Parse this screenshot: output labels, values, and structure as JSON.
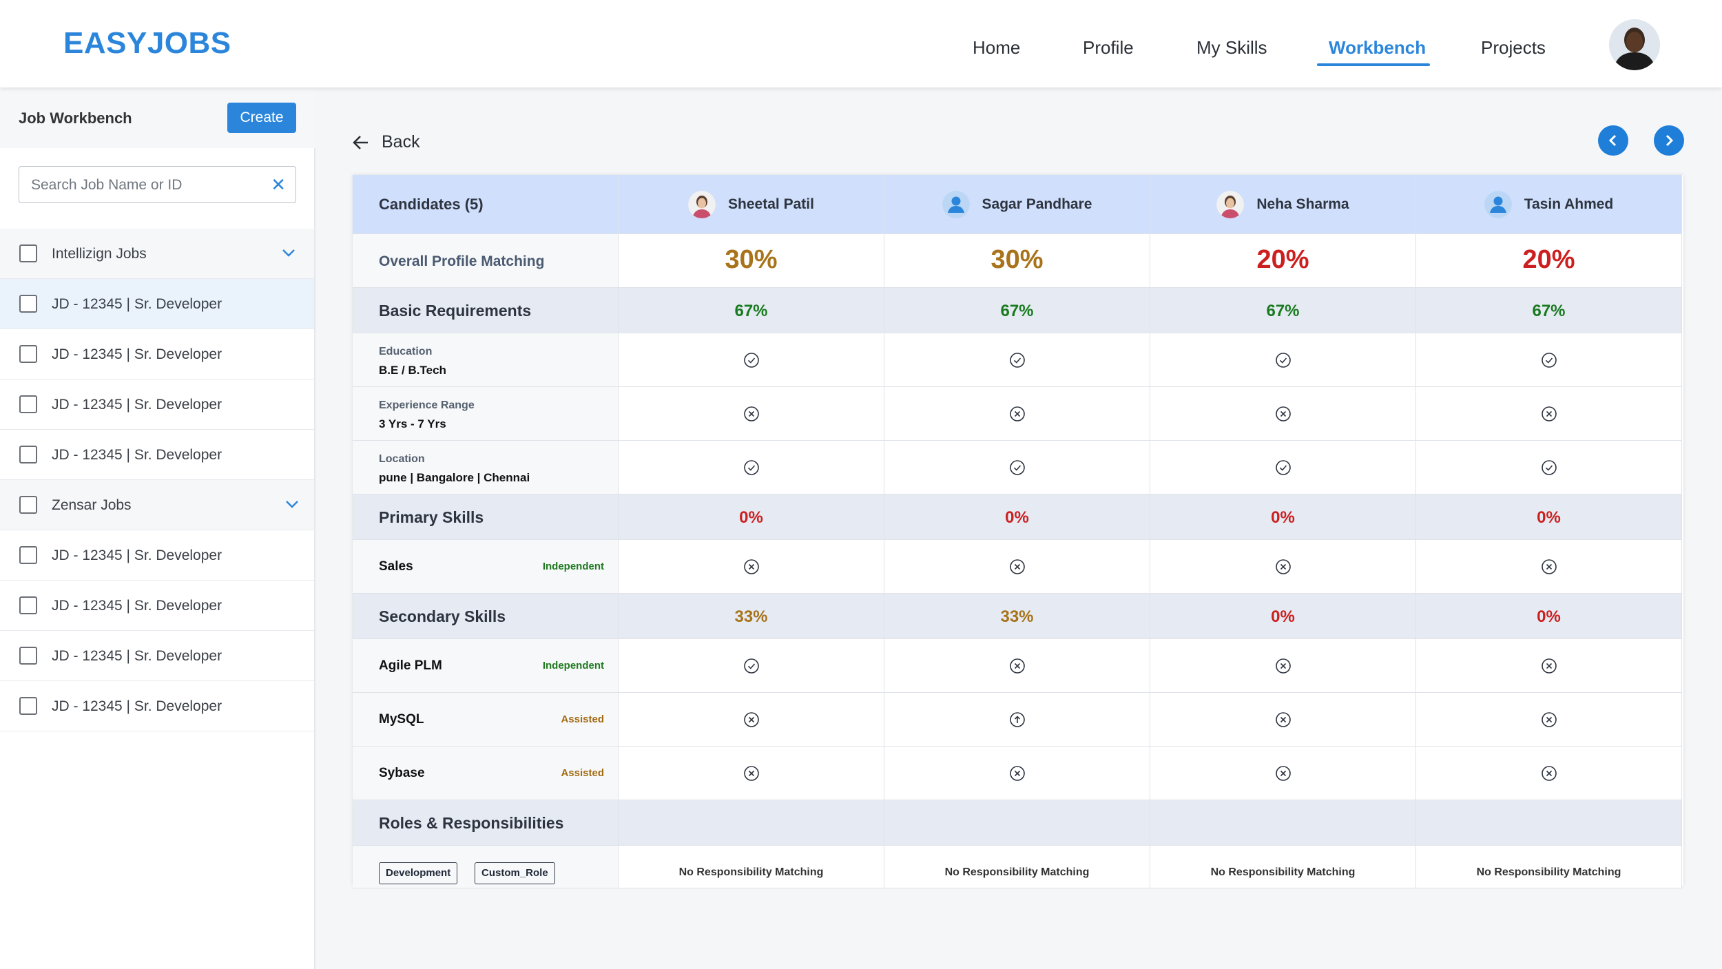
{
  "app": {
    "logo": "EASYJOBS"
  },
  "nav": {
    "items": [
      "Home",
      "Profile",
      "My Skills",
      "Workbench",
      "Projects"
    ],
    "active": "Workbench"
  },
  "sidebar": {
    "title": "Job Workbench",
    "create_label": "Create",
    "search_placeholder": "Search Job Name or ID",
    "groups": [
      {
        "label": "Intellizign Jobs",
        "items": [
          "JD - 12345 | Sr. Developer",
          "JD - 12345 | Sr. Developer",
          "JD - 12345 | Sr. Developer",
          "JD - 12345 | Sr. Developer"
        ]
      },
      {
        "label": "Zensar Jobs",
        "items": [
          "JD - 12345 | Sr. Developer",
          "JD - 12345 | Sr. Developer",
          "JD - 12345 | Sr. Developer",
          "JD - 12345 | Sr. Developer"
        ]
      }
    ]
  },
  "main": {
    "back_label": "Back",
    "candidates_title": "Candidates (5)",
    "candidates": [
      {
        "name": "Sheetal Patil",
        "avatar": "photo"
      },
      {
        "name": "Sagar Pandhare",
        "avatar": "placeholder"
      },
      {
        "name": "Neha Sharma",
        "avatar": "photo"
      },
      {
        "name": "Tasin Ahmed",
        "avatar": "placeholder"
      }
    ],
    "overall": {
      "label": "Overall Profile Matching",
      "values": [
        "30%",
        "30%",
        "20%",
        "20%"
      ]
    },
    "basic": {
      "label": "Basic Requirements",
      "values": [
        "67%",
        "67%",
        "67%",
        "67%"
      ],
      "rows": [
        {
          "label": "Education",
          "value": "B.E / B.Tech",
          "status": [
            "check",
            "check",
            "check",
            "check"
          ]
        },
        {
          "label": "Experience Range",
          "value": "3 Yrs - 7 Yrs",
          "status": [
            "cross",
            "cross",
            "cross",
            "cross"
          ]
        },
        {
          "label": "Location",
          "value": "pune | Bangalore | Chennai",
          "status": [
            "check",
            "check",
            "check",
            "check"
          ]
        }
      ]
    },
    "primary": {
      "label": "Primary Skills",
      "values": [
        "0%",
        "0%",
        "0%",
        "0%"
      ],
      "rows": [
        {
          "label": "Sales",
          "tag": "Independent",
          "status": [
            "cross",
            "cross",
            "cross",
            "cross"
          ]
        }
      ]
    },
    "secondary": {
      "label": "Secondary Skills",
      "values": [
        "33%",
        "33%",
        "0%",
        "0%"
      ],
      "rows": [
        {
          "label": "Agile PLM",
          "tag": "Independent",
          "status": [
            "check",
            "cross",
            "cross",
            "cross"
          ]
        },
        {
          "label": "MySQL",
          "tag": "Assisted",
          "status": [
            "cross",
            "up",
            "cross",
            "cross"
          ]
        },
        {
          "label": "Sybase",
          "tag": "Assisted",
          "status": [
            "cross",
            "cross",
            "cross",
            "cross"
          ]
        }
      ]
    },
    "roles": {
      "label": "Roles & Responsibilities",
      "chips": [
        "Development",
        "Custom_Role"
      ],
      "values": [
        "No Responsibility Matching",
        "No Responsibility Matching",
        "No Responsibility Matching",
        "No Responsibility Matching"
      ]
    }
  },
  "colors": {
    "accent": "#2b86db",
    "orange": "#a8731a",
    "red": "#cc2020",
    "green": "#187a1e",
    "header_row": "#d0dffb",
    "section_row": "#e6ebf3"
  }
}
